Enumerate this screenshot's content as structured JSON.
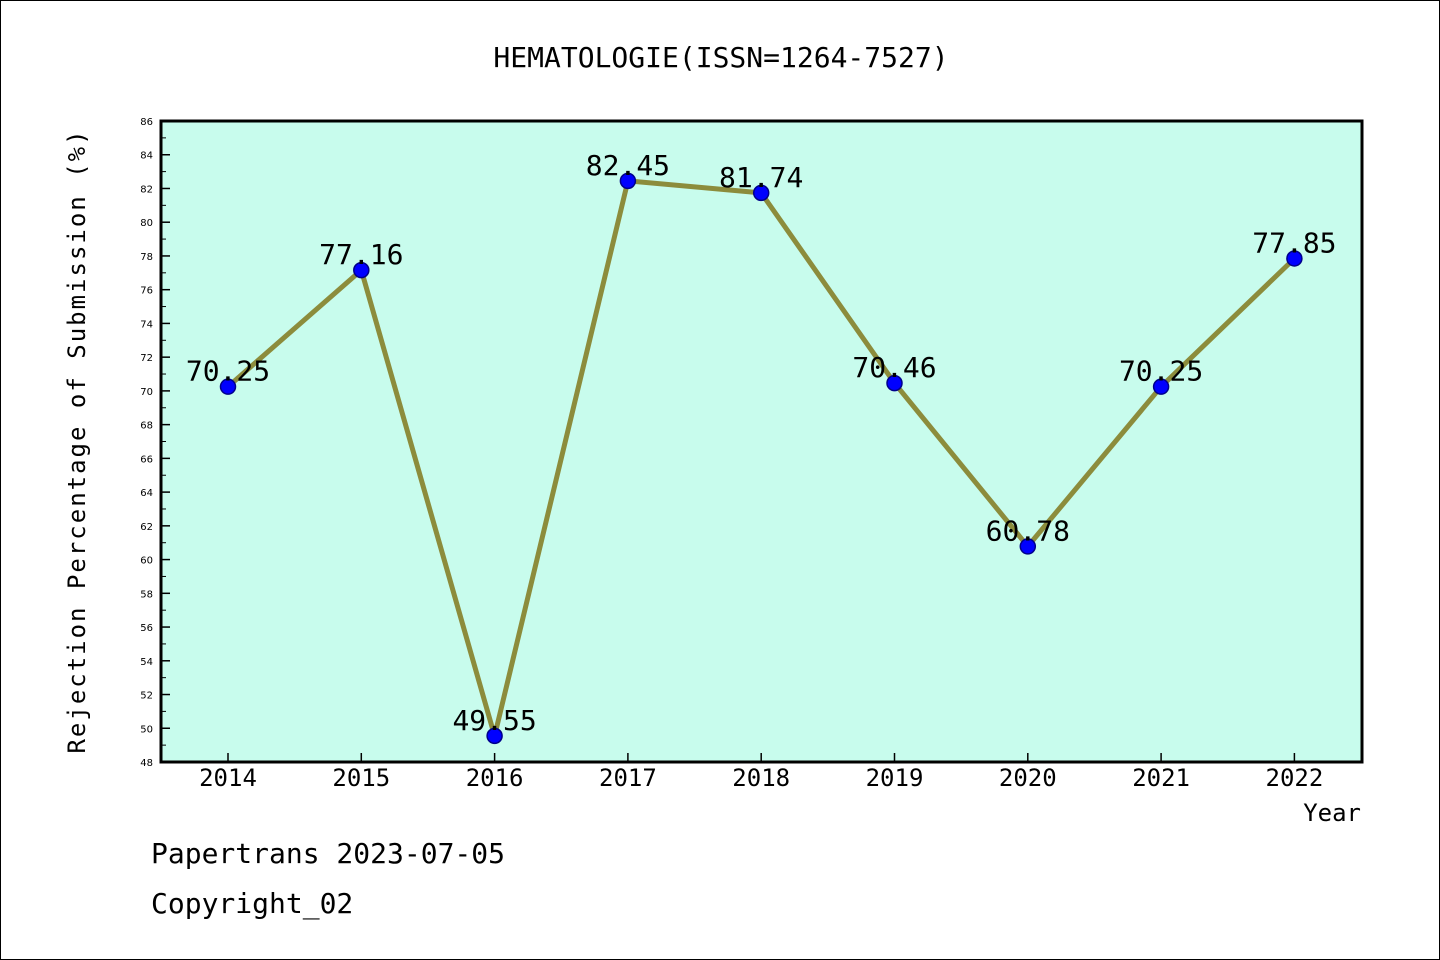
{
  "chart_data": {
    "type": "line",
    "title": "HEMATOLOGIE(ISSN=1264-7527)",
    "xlabel": "Year",
    "ylabel": "Rejection Percentage of Submission (%)",
    "categories": [
      "2014",
      "2015",
      "2016",
      "2017",
      "2018",
      "2019",
      "2020",
      "2021",
      "2022"
    ],
    "series": [
      {
        "values": [
          70.25,
          77.16,
          49.55,
          82.45,
          81.74,
          70.46,
          60.78,
          70.25,
          77.85
        ]
      }
    ],
    "data_labels": [
      "70.25",
      "77.16",
      "49.55",
      "82.45",
      "81.74",
      "70.46",
      "60.78",
      "70.25",
      "77.85"
    ],
    "ylim": [
      48,
      86
    ],
    "yticks": [
      48,
      50,
      52,
      54,
      56,
      58,
      60,
      62,
      64,
      66,
      68,
      70,
      72,
      74,
      76,
      78,
      80,
      82,
      84,
      86
    ],
    "grid": false,
    "colors": {
      "plot_background": "#c8fced",
      "line": "#8c8c3c",
      "marker": "#0000ff",
      "marker_edge": "#00008b"
    }
  },
  "footer": {
    "source": "Papertrans 2023-07-05",
    "copyright": "Copyright_02"
  }
}
